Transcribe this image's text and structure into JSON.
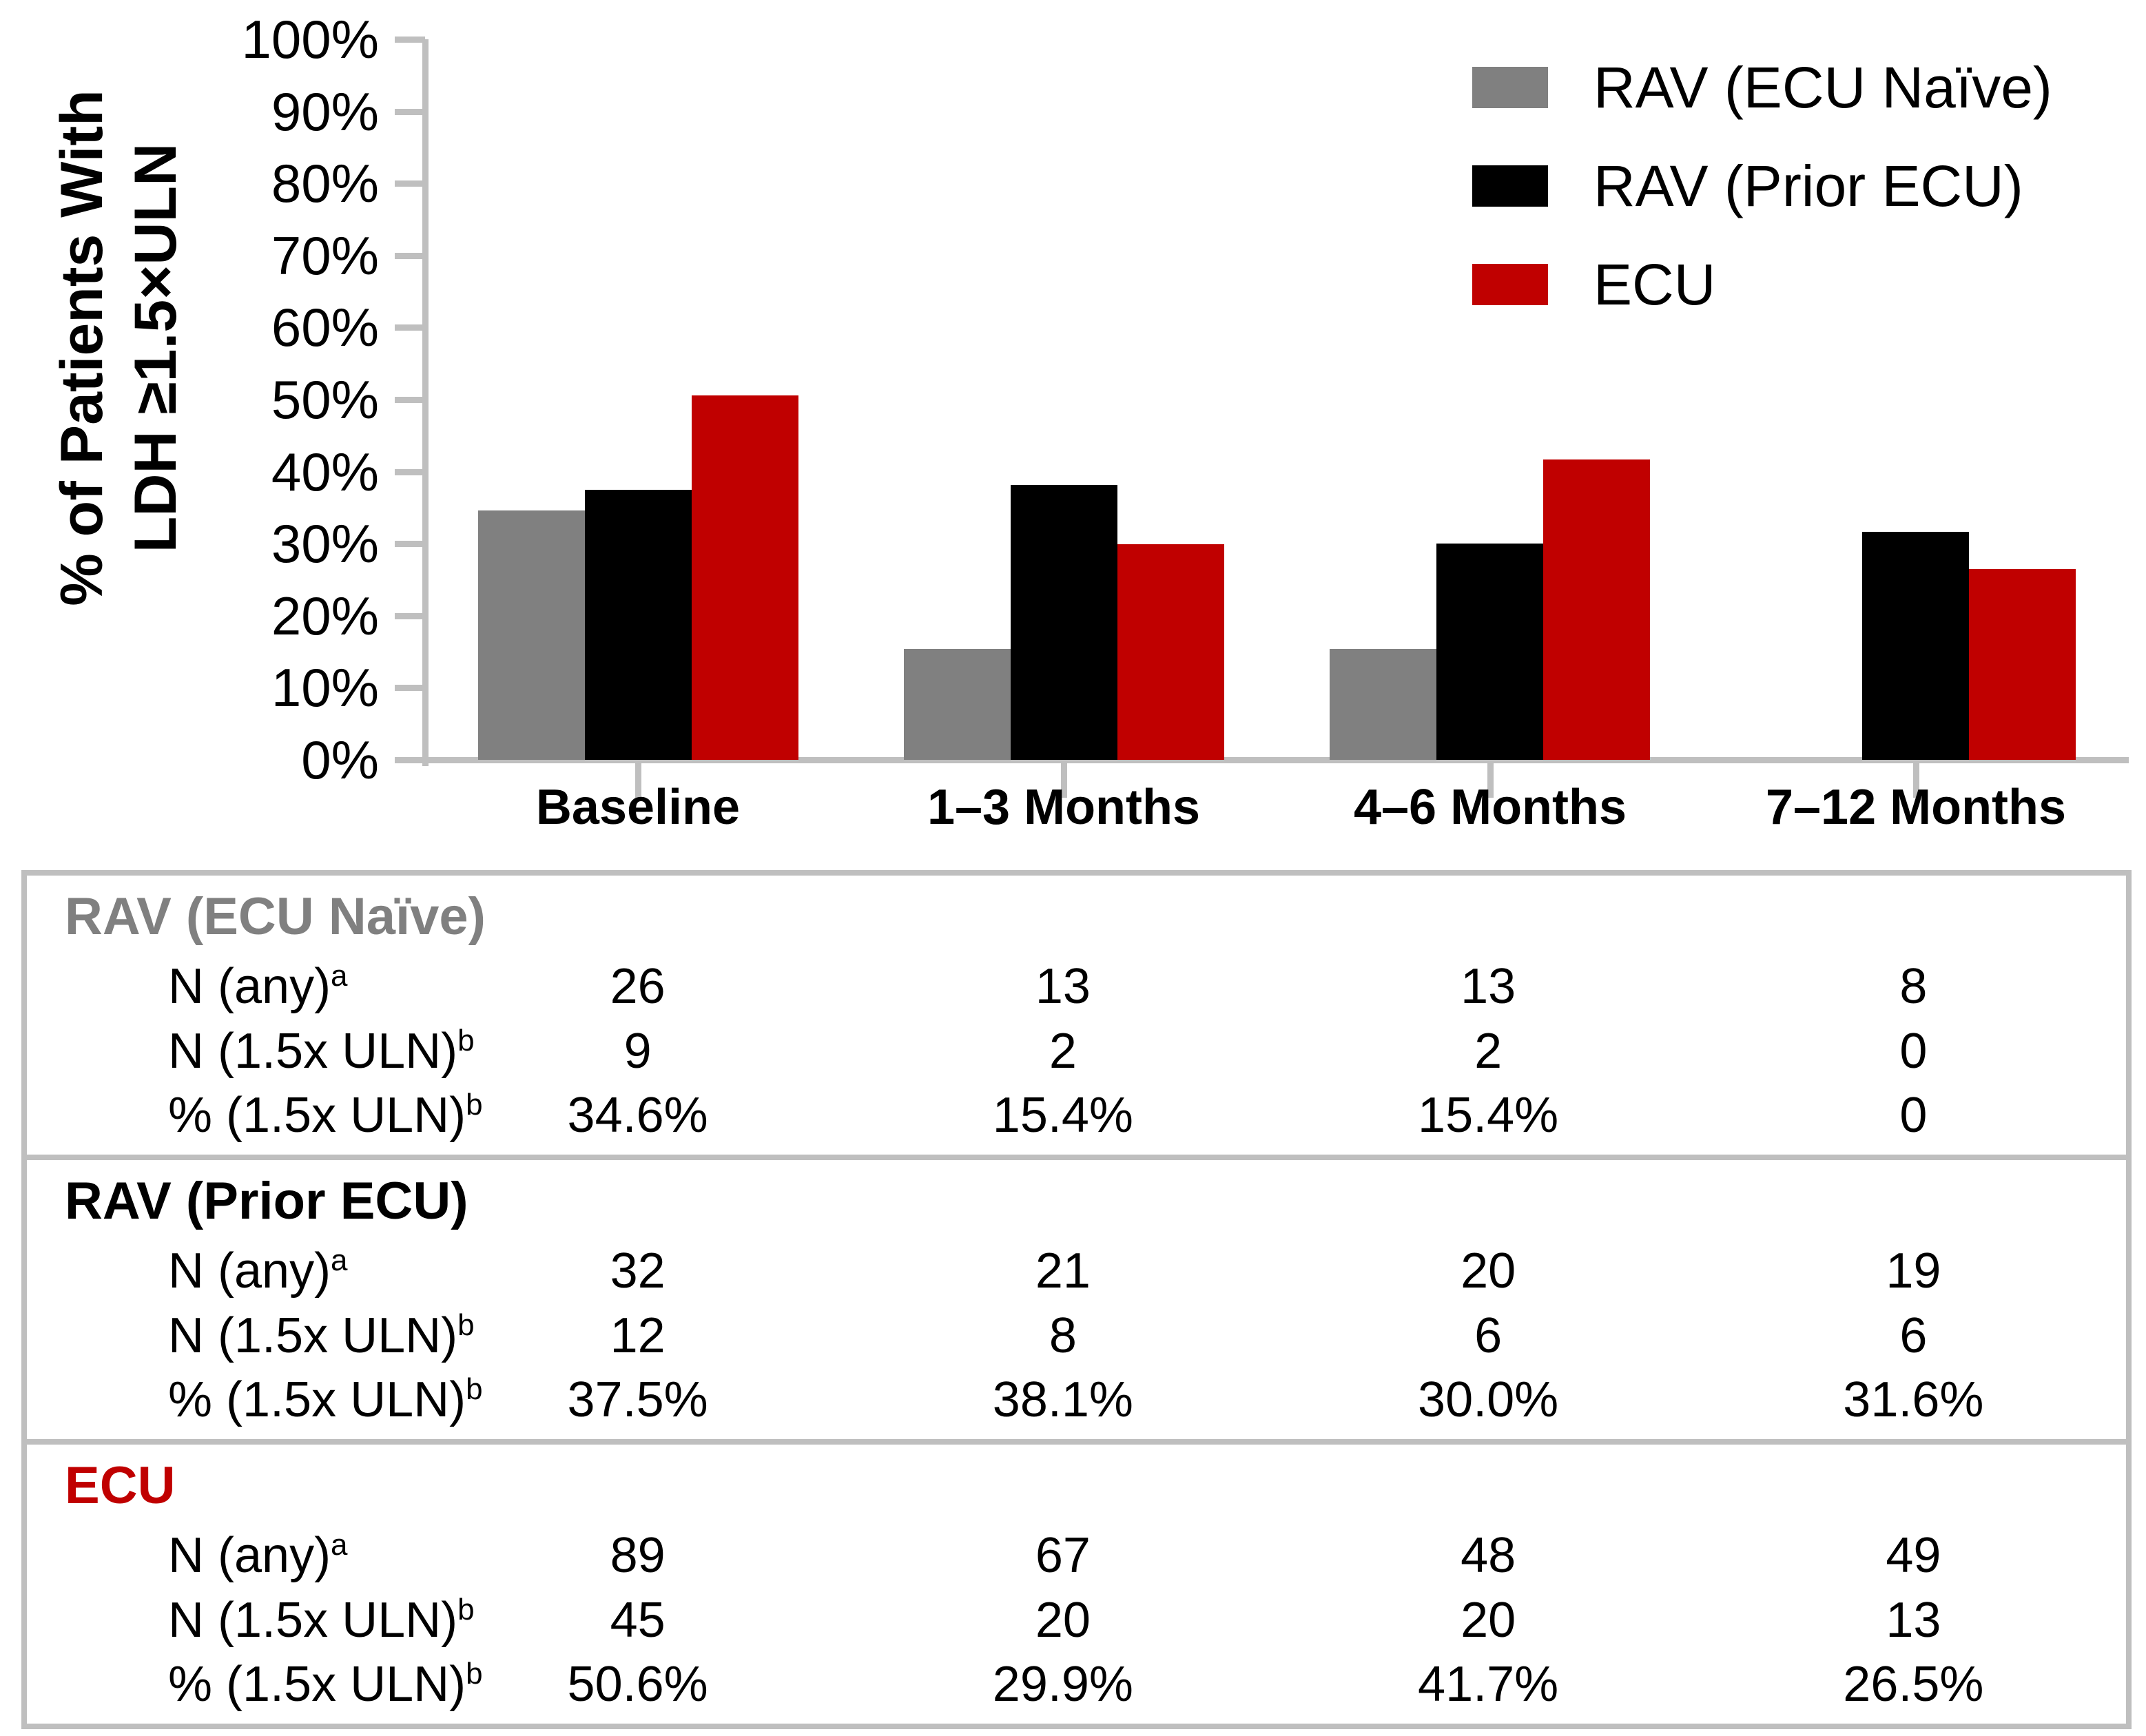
{
  "y_axis": {
    "title_line1": "% of Patients With",
    "title_line2": "LDH ≥1.5×ULN",
    "min": 0,
    "max": 100,
    "step": 10,
    "tick_suffix": "%"
  },
  "legend": [
    {
      "label": "RAV (ECU Naïve)",
      "color": "#808080"
    },
    {
      "label": "RAV (Prior ECU)",
      "color": "#000000"
    },
    {
      "label": "ECU",
      "color": "#C00000"
    }
  ],
  "chart_data": {
    "type": "bar",
    "categories": [
      "Baseline",
      "1–3 Months",
      "4–6 Months",
      "7–12 Months"
    ],
    "series": [
      {
        "name": "RAV (ECU Naïve)",
        "color": "#808080",
        "values": [
          34.6,
          15.4,
          15.4,
          0
        ]
      },
      {
        "name": "RAV (Prior ECU)",
        "color": "#000000",
        "values": [
          37.5,
          38.1,
          30.0,
          31.6
        ]
      },
      {
        "name": "ECU",
        "color": "#C00000",
        "values": [
          50.6,
          29.9,
          41.7,
          26.5
        ]
      }
    ],
    "ylabel": "% of Patients With LDH ≥1.5×ULN",
    "xlabel": "",
    "ylim": [
      0,
      100
    ],
    "ytick_step": 10,
    "grid": false,
    "legend_position": "top-right",
    "axis_color": "#BFBFBF"
  },
  "table": {
    "sections": [
      {
        "header": "RAV (ECU Naïve)",
        "header_color": "#808080",
        "rows": [
          {
            "label": "N (any)",
            "sup": "a",
            "values": [
              "26",
              "13",
              "13",
              "8"
            ]
          },
          {
            "label": "N (1.5x ULN)",
            "sup": "b",
            "values": [
              "9",
              "2",
              "2",
              "0"
            ]
          },
          {
            "label": "% (1.5x ULN)",
            "sup": "b",
            "values": [
              "34.6%",
              "15.4%",
              "15.4%",
              "0"
            ]
          }
        ]
      },
      {
        "header": "RAV (Prior ECU)",
        "header_color": "#000000",
        "rows": [
          {
            "label": "N (any)",
            "sup": "a",
            "values": [
              "32",
              "21",
              "20",
              "19"
            ]
          },
          {
            "label": "N (1.5x ULN)",
            "sup": "b",
            "values": [
              "12",
              "8",
              "6",
              "6"
            ]
          },
          {
            "label": "% (1.5x ULN)",
            "sup": "b",
            "values": [
              "37.5%",
              "38.1%",
              "30.0%",
              "31.6%"
            ]
          }
        ]
      },
      {
        "header": "ECU",
        "header_color": "#C00000",
        "rows": [
          {
            "label": "N (any)",
            "sup": "a",
            "values": [
              "89",
              "67",
              "48",
              "49"
            ]
          },
          {
            "label": "N (1.5x ULN)",
            "sup": "b",
            "values": [
              "45",
              "20",
              "20",
              "13"
            ]
          },
          {
            "label": "% (1.5x ULN)",
            "sup": "b",
            "values": [
              "50.6%",
              "29.9%",
              "41.7%",
              "26.5%"
            ]
          }
        ]
      }
    ]
  }
}
